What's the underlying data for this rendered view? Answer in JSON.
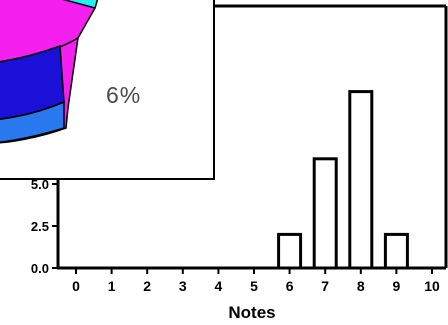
{
  "chart_data": [
    {
      "type": "bar",
      "categories": [
        "0",
        "1",
        "2",
        "3",
        "4",
        "5",
        "6",
        "7",
        "8",
        "9",
        "10"
      ],
      "values": [
        0,
        0,
        0,
        0,
        0,
        0,
        2,
        6.5,
        10.5,
        2,
        0
      ],
      "xlabel": "Notes",
      "ylabel": "",
      "yticks": [
        "0.0",
        "2.5",
        "5.0"
      ],
      "ylim": [
        0,
        11.5
      ],
      "bar_fill": "#ffffff",
      "bar_stroke": "#000000",
      "grid": false
    },
    {
      "type": "pie",
      "style": "3d",
      "visible_label": "6%",
      "colors": {
        "blue": "#1a10d8",
        "magenta": "#f520f0",
        "cyan": "#22f0f0"
      }
    }
  ]
}
